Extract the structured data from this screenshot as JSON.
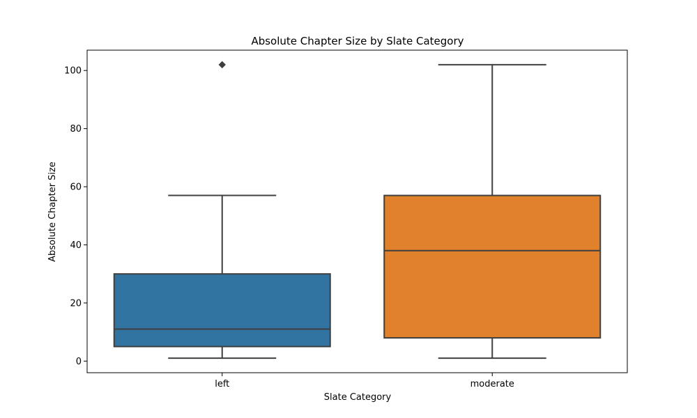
{
  "chart_data": {
    "type": "box",
    "title": "Absolute Chapter Size by Slate Category",
    "xlabel": "Slate Category",
    "ylabel": "Absolute Chapter Size",
    "ylim": [
      -4,
      107
    ],
    "yticks": [
      0,
      20,
      40,
      60,
      80,
      100
    ],
    "grid": false,
    "categories": [
      "left",
      "moderate"
    ],
    "series": [
      {
        "category": "left",
        "color": "#3274a1",
        "whisker_low": 1,
        "q1": 5,
        "median": 11,
        "q3": 30,
        "whisker_high": 57,
        "outliers": [
          102
        ]
      },
      {
        "category": "moderate",
        "color": "#e1812c",
        "whisker_low": 1,
        "q1": 8,
        "median": 38,
        "q3": 57,
        "whisker_high": 102,
        "outliers": []
      }
    ]
  }
}
